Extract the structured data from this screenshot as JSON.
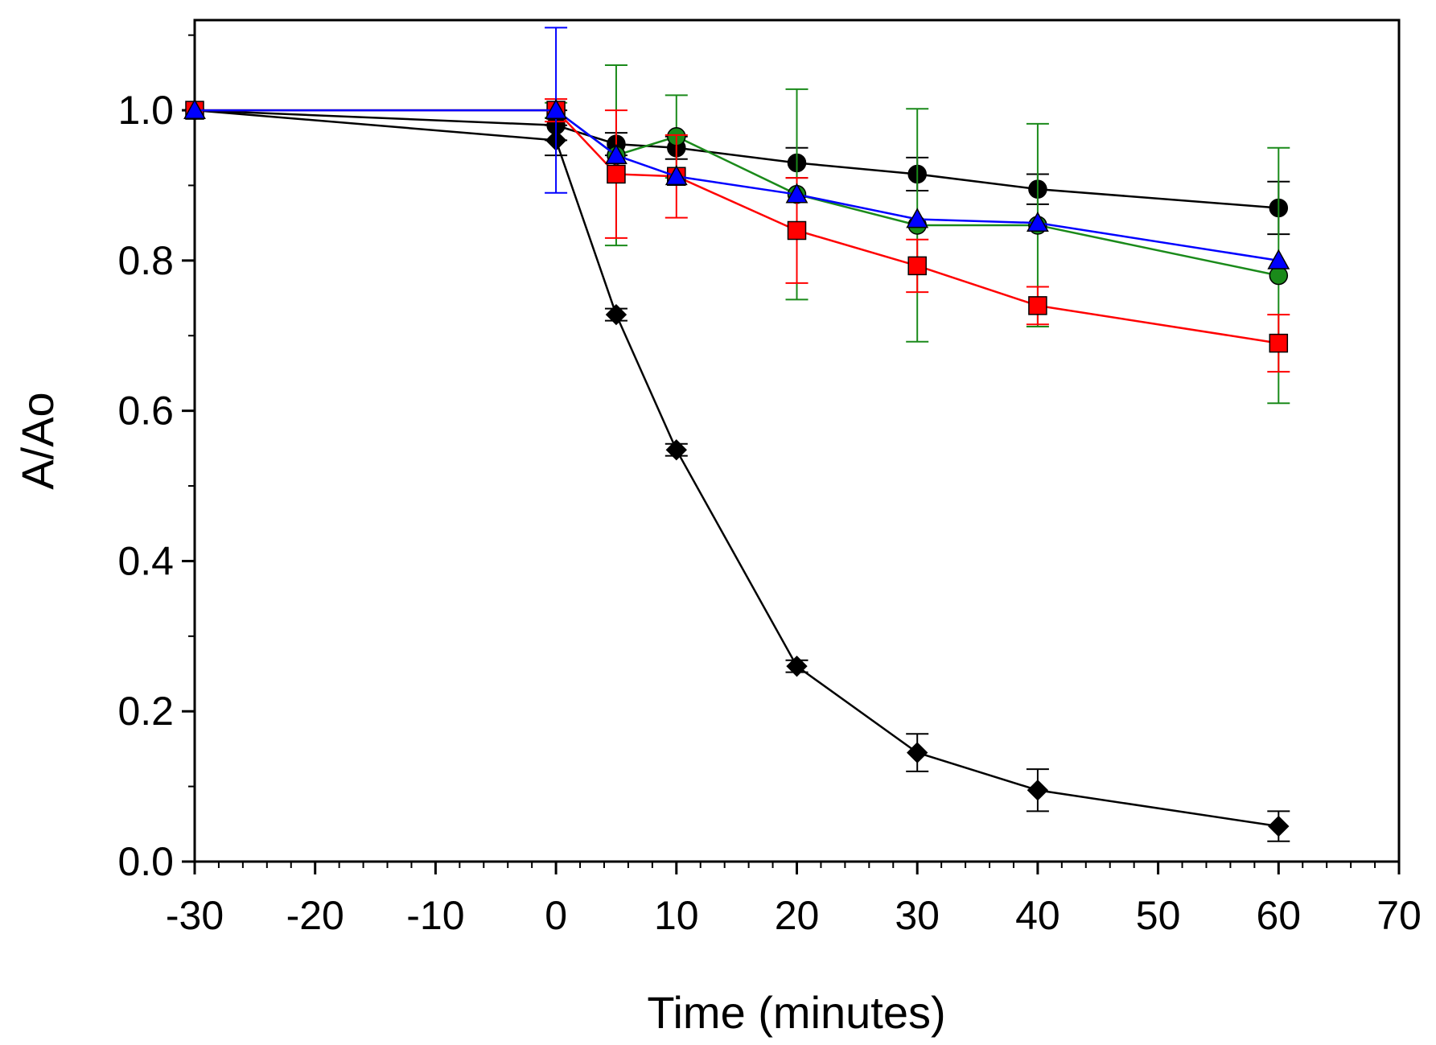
{
  "chart_data": {
    "type": "scatter",
    "title": "",
    "xlabel": "Time (minutes)",
    "ylabel": "A/Ao",
    "xlim": [
      -30,
      70
    ],
    "ylim": [
      0,
      1.12
    ],
    "xticks": [
      "-30",
      "-20",
      "-10",
      "0",
      "10",
      "20",
      "30",
      "40",
      "50",
      "60",
      "70"
    ],
    "yticks": [
      "0.0",
      "0.2",
      "0.4",
      "0.6",
      "0.8",
      "1.0"
    ],
    "grid": false,
    "legend": "none",
    "series": [
      {
        "marker": "circle",
        "color": "#000000",
        "marker_fill": "#000000",
        "line_color": "#000000",
        "x": [
          -30,
          0,
          5,
          10,
          20,
          30,
          40,
          60
        ],
        "y": [
          1.0,
          0.98,
          0.955,
          0.95,
          0.93,
          0.915,
          0.895,
          0.87
        ],
        "err": [
          0.0,
          0.02,
          0.015,
          0.015,
          0.02,
          0.022,
          0.02,
          0.035
        ]
      },
      {
        "marker": "diamond",
        "color": "#000000",
        "marker_fill": "#000000",
        "line_color": "#000000",
        "x": [
          -30,
          0,
          5,
          10,
          20,
          30,
          40,
          60
        ],
        "y": [
          1.0,
          0.96,
          0.728,
          0.548,
          0.26,
          0.145,
          0.095,
          0.047
        ],
        "err": [
          0.0,
          0.02,
          0.008,
          0.008,
          0.008,
          0.025,
          0.028,
          0.02
        ]
      },
      {
        "marker": "circle",
        "color": "#1a8a1a",
        "marker_fill": "#1a8a1a",
        "line_color": "#1a8a1a",
        "x": [
          -30,
          0,
          5,
          10,
          20,
          30,
          40,
          60
        ],
        "y": [
          1.0,
          1.0,
          0.94,
          0.965,
          0.888,
          0.847,
          0.847,
          0.78
        ],
        "err": [
          0.0,
          0.01,
          0.12,
          0.055,
          0.14,
          0.155,
          0.135,
          0.17
        ]
      },
      {
        "marker": "square",
        "color": "#ff0000",
        "marker_fill": "#ff0000",
        "line_color": "#ff0000",
        "x": [
          -30,
          0,
          5,
          10,
          20,
          30,
          40,
          60
        ],
        "y": [
          1.0,
          1.0,
          0.915,
          0.912,
          0.84,
          0.793,
          0.74,
          0.69
        ],
        "err": [
          0.0,
          0.015,
          0.085,
          0.055,
          0.07,
          0.035,
          0.025,
          0.038
        ]
      },
      {
        "marker": "triangle",
        "color": "#0000ff",
        "marker_fill": "#0000ff",
        "line_color": "#0000ff",
        "x": [
          -30,
          0,
          5,
          10,
          20,
          30,
          40,
          60
        ],
        "y": [
          1.0,
          1.0,
          0.94,
          0.912,
          0.888,
          0.855,
          0.85,
          0.8
        ],
        "err": [
          0.0,
          0.11,
          0.0,
          0.0,
          0.0,
          0.0,
          0.0,
          0.0
        ]
      }
    ]
  }
}
